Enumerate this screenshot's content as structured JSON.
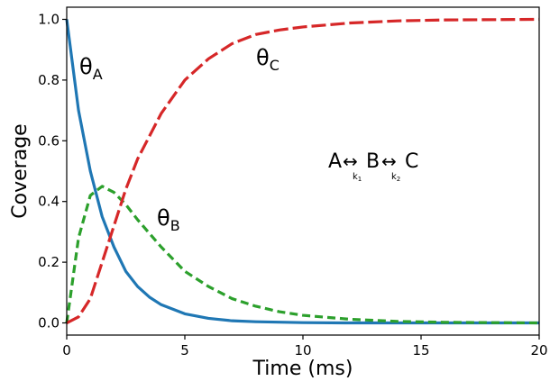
{
  "chart_data": {
    "type": "line",
    "title": "",
    "xlabel": "Time (ms)",
    "ylabel": "Coverage",
    "xlim": [
      0,
      20
    ],
    "ylim": [
      -0.04,
      1.04
    ],
    "xticks": [
      "0",
      "5",
      "10",
      "15",
      "20"
    ],
    "yticks": [
      "0.0",
      "0.2",
      "0.4",
      "0.6",
      "0.8",
      "1.0"
    ],
    "grid": false,
    "legend": "none",
    "series": [
      {
        "name": "θA",
        "color": "#1f77b4",
        "style": "solid",
        "x": [
          0,
          0.5,
          1,
          1.5,
          2,
          2.5,
          3,
          3.5,
          4,
          5,
          6,
          7,
          8,
          10,
          12,
          15,
          20
        ],
        "y": [
          1.0,
          0.7,
          0.5,
          0.35,
          0.25,
          0.17,
          0.12,
          0.085,
          0.06,
          0.03,
          0.015,
          0.007,
          0.004,
          0.001,
          0.0,
          0.0,
          0.0
        ]
      },
      {
        "name": "θB",
        "color": "#2ca02c",
        "style": "dashed",
        "x": [
          0,
          0.5,
          1,
          1.5,
          2,
          2.5,
          3,
          4,
          5,
          6,
          7,
          8,
          9,
          10,
          12,
          14,
          16,
          20
        ],
        "y": [
          0.0,
          0.28,
          0.42,
          0.45,
          0.43,
          0.39,
          0.34,
          0.25,
          0.17,
          0.12,
          0.08,
          0.055,
          0.037,
          0.025,
          0.012,
          0.005,
          0.002,
          0.0
        ]
      },
      {
        "name": "θC",
        "color": "#d62728",
        "style": "dashed",
        "x": [
          0,
          0.5,
          1,
          1.5,
          2,
          2.5,
          3,
          4,
          5,
          6,
          7,
          8,
          9,
          10,
          12,
          14,
          16,
          20
        ],
        "y": [
          0.0,
          0.02,
          0.08,
          0.2,
          0.32,
          0.44,
          0.54,
          0.69,
          0.8,
          0.87,
          0.92,
          0.95,
          0.965,
          0.975,
          0.988,
          0.995,
          0.998,
          1.0
        ]
      }
    ],
    "annotations": {
      "thetaA": {
        "main": "θ",
        "sub": "A",
        "x": 0.5,
        "y": 0.84
      },
      "thetaB": {
        "main": "θ",
        "sub": "B",
        "x": 3.8,
        "y": 0.32
      },
      "thetaC": {
        "main": "θ",
        "sub": "C",
        "x": 8.0,
        "y": 0.85
      },
      "scheme": {
        "x": 11.0,
        "y": 0.52,
        "A": "A",
        "arrow1": "↔",
        "B": "B",
        "arrow2": "↔",
        "C": "C",
        "k1": "k",
        "k1_sub": "1",
        "k2": "k",
        "k2_sub": "2"
      }
    }
  }
}
